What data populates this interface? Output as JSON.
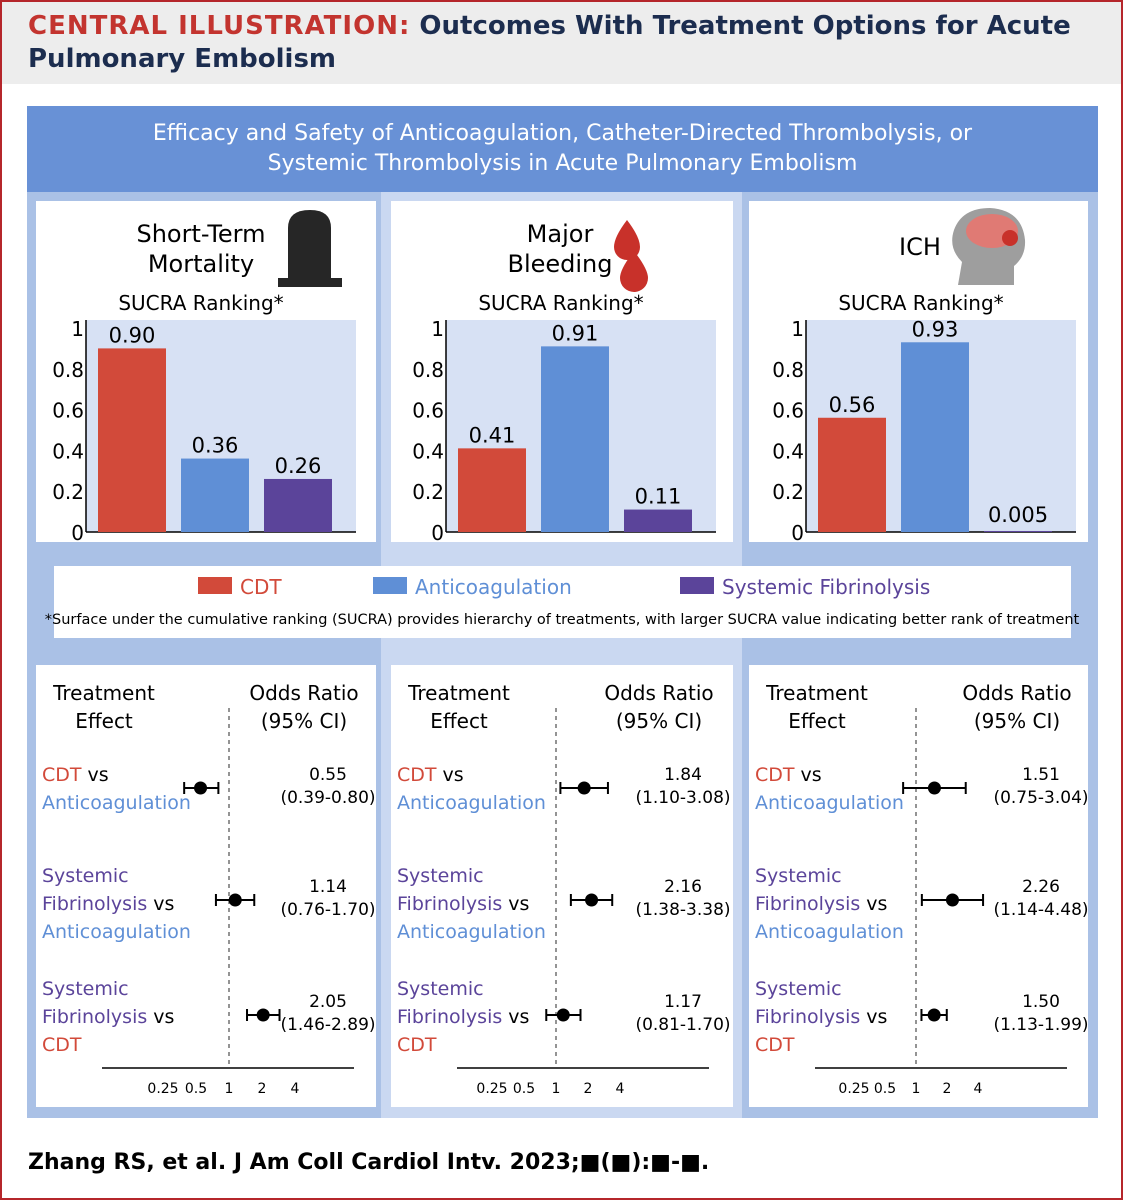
{
  "header": {
    "kicker": "CENTRAL ILLUSTRATION:",
    "title": "Outcomes With Treatment Options for Acute",
    "title_line2": "Pulmonary Embolism"
  },
  "banner": {
    "line1": "Efficacy and Safety of Anticoagulation, Catheter-Directed Thrombolysis, or",
    "line2": "Systemic Thrombolysis in Acute Pulmonary Embolism"
  },
  "colors": {
    "cdt": "#d24a3a",
    "anticoagulation": "#5f8fd6",
    "systemic": "#5b449a",
    "plot_bg": "#d7e1f4"
  },
  "icons": [
    "tombstone-icon",
    "blood-drops-icon",
    "brain-head-icon"
  ],
  "legend": {
    "items": [
      {
        "label": "CDT",
        "color": "#d24a3a"
      },
      {
        "label": "Anticoagulation",
        "color": "#5f8fd6"
      },
      {
        "label": "Systemic Fibrinolysis",
        "color": "#5b449a"
      }
    ],
    "note": "*Surface under the cumulative ranking (SUCRA) provides hierarchy of treatments, with larger SUCRA value indicating better rank of treatment"
  },
  "forest_labels": {
    "col1": [
      "Treatment",
      "Effect"
    ],
    "col2": [
      "Odds Ratio",
      "(95% CI)"
    ],
    "vs": "vs",
    "systemic_line1": "Systemic",
    "fibrinolysis": "Fibrinolysis",
    "cdt": "CDT",
    "anticoagulation": "Anticoagulation"
  },
  "chart_data": [
    {
      "type": "bar",
      "title": "Short-Term Mortality",
      "subtitle": "SUCRA Ranking*",
      "categories": [
        "CDT",
        "Anticoagulation",
        "Systemic Fibrinolysis"
      ],
      "values": [
        0.9,
        0.36,
        0.26
      ],
      "value_labels": [
        "0.90",
        "0.36",
        "0.26"
      ],
      "ylim": [
        0,
        1
      ],
      "yticks": [
        "0",
        "0.2",
        "0.4",
        "0.6",
        "0.8",
        "1"
      ]
    },
    {
      "type": "bar",
      "title": "Major Bleeding",
      "subtitle": "SUCRA Ranking*",
      "categories": [
        "CDT",
        "Anticoagulation",
        "Systemic Fibrinolysis"
      ],
      "values": [
        0.41,
        0.91,
        0.11
      ],
      "value_labels": [
        "0.41",
        "0.91",
        "0.11"
      ],
      "ylim": [
        0,
        1
      ],
      "yticks": [
        "0",
        "0.2",
        "0.4",
        "0.6",
        "0.8",
        "1"
      ]
    },
    {
      "type": "bar",
      "title": "ICH",
      "subtitle": "SUCRA Ranking*",
      "categories": [
        "CDT",
        "Anticoagulation",
        "Systemic Fibrinolysis"
      ],
      "values": [
        0.56,
        0.93,
        0.005
      ],
      "value_labels": [
        "0.56",
        "0.93",
        "0.005"
      ],
      "ylim": [
        0,
        1
      ],
      "yticks": [
        "0",
        "0.2",
        "0.4",
        "0.6",
        "0.8",
        "1"
      ]
    },
    {
      "type": "scatter",
      "subtype": "forest",
      "outcome": "Short-Term Mortality",
      "x_scale": "log",
      "xticks": [
        "0.25",
        "0.5",
        "1",
        "2",
        "4"
      ],
      "comparisons": [
        {
          "label": "CDT vs Anticoagulation",
          "or": 0.55,
          "ci": [
            0.39,
            0.8
          ],
          "or_text": "0.55",
          "ci_text": "(0.39-0.80)"
        },
        {
          "label": "Systemic Fibrinolysis vs Anticoagulation",
          "or": 1.14,
          "ci": [
            0.76,
            1.7
          ],
          "or_text": "1.14",
          "ci_text": "(0.76-1.70)"
        },
        {
          "label": "Systemic Fibrinolysis vs CDT",
          "or": 2.05,
          "ci": [
            1.46,
            2.89
          ],
          "or_text": "2.05",
          "ci_text": "(1.46-2.89)"
        }
      ]
    },
    {
      "type": "scatter",
      "subtype": "forest",
      "outcome": "Major Bleeding",
      "x_scale": "log",
      "xticks": [
        "0.25",
        "0.5",
        "1",
        "2",
        "4"
      ],
      "comparisons": [
        {
          "label": "CDT vs Anticoagulation",
          "or": 1.84,
          "ci": [
            1.1,
            3.08
          ],
          "or_text": "1.84",
          "ci_text": "(1.10-3.08)"
        },
        {
          "label": "Systemic Fibrinolysis vs Anticoagulation",
          "or": 2.16,
          "ci": [
            1.38,
            3.38
          ],
          "or_text": "2.16",
          "ci_text": "(1.38-3.38)"
        },
        {
          "label": "Systemic Fibrinolysis vs CDT",
          "or": 1.17,
          "ci": [
            0.81,
            1.7
          ],
          "or_text": "1.17",
          "ci_text": "(0.81-1.70)"
        }
      ]
    },
    {
      "type": "scatter",
      "subtype": "forest",
      "outcome": "ICH",
      "x_scale": "log",
      "xticks": [
        "0.25",
        "0.5",
        "1",
        "2",
        "4"
      ],
      "comparisons": [
        {
          "label": "CDT vs Anticoagulation",
          "or": 1.51,
          "ci": [
            0.75,
            3.04
          ],
          "or_text": "1.51",
          "ci_text": "(0.75-3.04)"
        },
        {
          "label": "Systemic Fibrinolysis vs Anticoagulation",
          "or": 2.26,
          "ci": [
            1.14,
            4.48
          ],
          "or_text": "2.26",
          "ci_text": "(1.14-4.48)"
        },
        {
          "label": "Systemic Fibrinolysis vs CDT",
          "or": 1.5,
          "ci": [
            1.13,
            1.99
          ],
          "or_text": "1.50",
          "ci_text": "(1.13-1.99)"
        }
      ]
    }
  ],
  "footer": {
    "citation": "Zhang RS, et al. J Am Coll Cardiol Intv. 2023;■(■):■-■."
  }
}
